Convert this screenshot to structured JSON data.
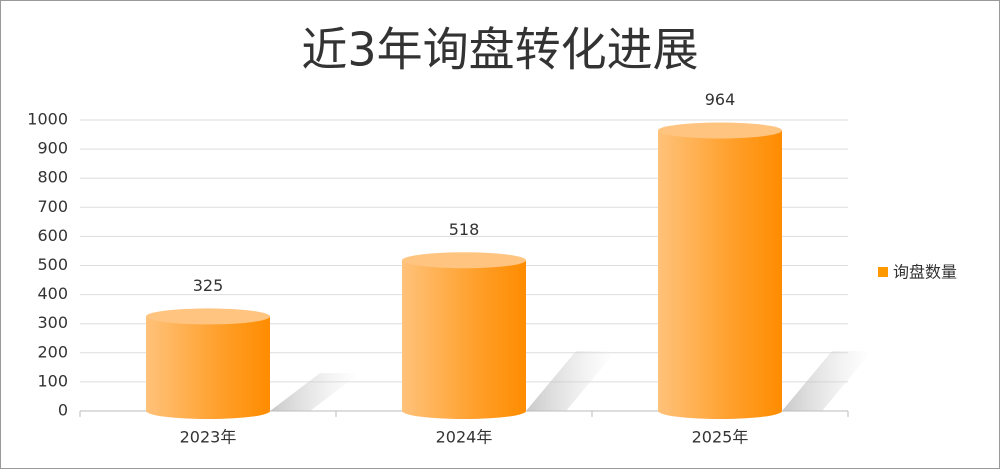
{
  "chart_data": {
    "type": "bar",
    "title": "近3年询盘转化进展",
    "categories": [
      "2023年",
      "2024年",
      "2025年"
    ],
    "series": [
      {
        "name": "询盘数量",
        "color": "#ff9900",
        "values": [
          325,
          518,
          964
        ]
      }
    ],
    "ylim": [
      0,
      1000
    ],
    "yticks": [
      0,
      100,
      200,
      300,
      400,
      500,
      600,
      700,
      800,
      900,
      1000
    ],
    "grid": true,
    "legend": "right"
  }
}
